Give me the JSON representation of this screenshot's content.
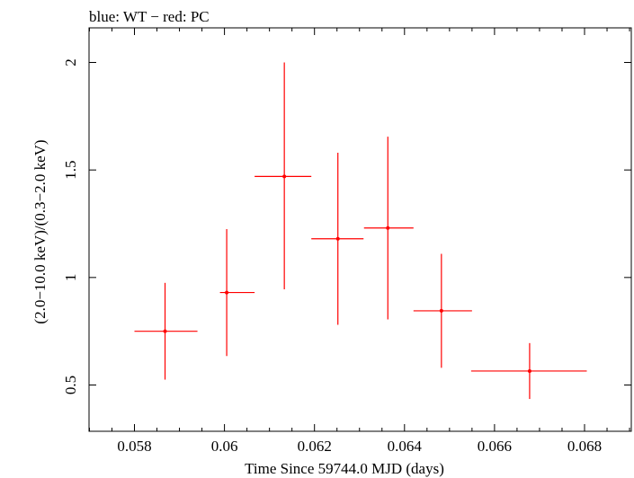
{
  "chart_data": {
    "type": "scatter",
    "title": "blue: WT − red: PC",
    "xlabel": "Time Since 59744.0 MJD (days)",
    "ylabel": "(2.0−10.0 keV)/(0.3−2.0 keV)",
    "xlim": [
      0.057,
      0.069
    ],
    "ylim": [
      0.3,
      2.15
    ],
    "xticks": [
      0.058,
      0.06,
      0.062,
      0.064,
      0.066,
      0.068
    ],
    "xtick_labels": [
      "0.058",
      "0.06",
      "0.062",
      "0.064",
      "0.066",
      "0.068"
    ],
    "yticks": [
      0.5,
      1,
      1.5,
      2
    ],
    "ytick_labels": [
      "0.5",
      "1",
      "1.5",
      "2"
    ],
    "series": [
      {
        "name": "PC",
        "color": "#ff0000",
        "points": [
          {
            "x": 0.05868,
            "xlo": 0.058,
            "xhi": 0.0594,
            "y": 0.75,
            "ylo": 0.525,
            "yhi": 0.975
          },
          {
            "x": 0.06005,
            "xlo": 0.0599,
            "xhi": 0.06067,
            "y": 0.93,
            "ylo": 0.635,
            "yhi": 1.225
          },
          {
            "x": 0.06133,
            "xlo": 0.06067,
            "xhi": 0.06193,
            "y": 1.47,
            "ylo": 0.945,
            "yhi": 2.0
          },
          {
            "x": 0.06252,
            "xlo": 0.06193,
            "xhi": 0.06309,
            "y": 1.18,
            "ylo": 0.78,
            "yhi": 1.58
          },
          {
            "x": 0.06363,
            "xlo": 0.0631,
            "xhi": 0.0642,
            "y": 1.23,
            "ylo": 0.805,
            "yhi": 1.655
          },
          {
            "x": 0.06482,
            "xlo": 0.0642,
            "xhi": 0.0655,
            "y": 0.845,
            "ylo": 0.58,
            "yhi": 1.11
          },
          {
            "x": 0.06678,
            "xlo": 0.06548,
            "xhi": 0.06805,
            "y": 0.565,
            "ylo": 0.435,
            "yhi": 0.695
          }
        ]
      }
    ]
  }
}
